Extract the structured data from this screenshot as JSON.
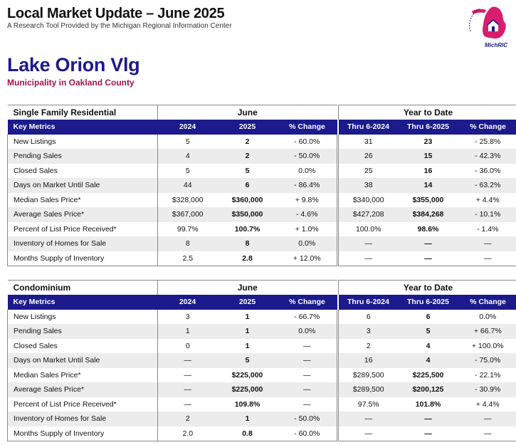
{
  "header": {
    "title": "Local Market Update – June 2025",
    "subtitle": "A Research Tool Provided by the Michigan Regional Information Center"
  },
  "logo": {
    "caption": "MichRIC",
    "color": "#d81f6e",
    "accent": "#1c1a8c"
  },
  "municipality": {
    "name": "Lake Orion Vlg",
    "subtitle": "Municipality in Oakland County"
  },
  "colors": {
    "header_bg": "#1c1a8c",
    "title": "#1c1a8c",
    "subtitle": "#a0134e",
    "stripe": "#ececec"
  },
  "columns": {
    "key_metrics": "Key Metrics",
    "group_month": "June",
    "group_ytd": "Year to Date",
    "m2024": "2024",
    "m2025": "2025",
    "pct": "% Change",
    "y2024": "Thru 6-2024",
    "y2025": "Thru 6-2025"
  },
  "sections": [
    {
      "title": "Single Family Residential",
      "rows": [
        [
          "New Listings",
          "5",
          "2",
          "- 60.0%",
          "31",
          "23",
          "- 25.8%"
        ],
        [
          "Pending Sales",
          "4",
          "2",
          "- 50.0%",
          "26",
          "15",
          "- 42.3%"
        ],
        [
          "Closed Sales",
          "5",
          "5",
          "0.0%",
          "25",
          "16",
          "- 36.0%"
        ],
        [
          "Days on Market Until Sale",
          "44",
          "6",
          "- 86.4%",
          "38",
          "14",
          "- 63.2%"
        ],
        [
          "Median Sales Price*",
          "$328,000",
          "$360,000",
          "+ 9.8%",
          "$340,000",
          "$355,000",
          "+ 4.4%"
        ],
        [
          "Average Sales Price*",
          "$367,000",
          "$350,000",
          "- 4.6%",
          "$427,208",
          "$384,268",
          "- 10.1%"
        ],
        [
          "Percent of List Price Received*",
          "99.7%",
          "100.7%",
          "+ 1.0%",
          "100.0%",
          "98.6%",
          "- 1.4%"
        ],
        [
          "Inventory of Homes for Sale",
          "8",
          "8",
          "0.0%",
          "—",
          "—",
          "—"
        ],
        [
          "Months Supply of Inventory",
          "2.5",
          "2.8",
          "+ 12.0%",
          "—",
          "—",
          "—"
        ]
      ]
    },
    {
      "title": "Condominium",
      "rows": [
        [
          "New Listings",
          "3",
          "1",
          "- 66.7%",
          "6",
          "6",
          "0.0%"
        ],
        [
          "Pending Sales",
          "1",
          "1",
          "0.0%",
          "3",
          "5",
          "+ 66.7%"
        ],
        [
          "Closed Sales",
          "0",
          "1",
          "—",
          "2",
          "4",
          "+ 100.0%"
        ],
        [
          "Days on Market Until Sale",
          "—",
          "5",
          "—",
          "16",
          "4",
          "- 75.0%"
        ],
        [
          "Median Sales Price*",
          "—",
          "$225,000",
          "—",
          "$289,500",
          "$225,500",
          "- 22.1%"
        ],
        [
          "Average Sales Price*",
          "—",
          "$225,000",
          "—",
          "$289,500",
          "$200,125",
          "- 30.9%"
        ],
        [
          "Percent of List Price Received*",
          "—",
          "109.8%",
          "—",
          "97.5%",
          "101.8%",
          "+ 4.4%"
        ],
        [
          "Inventory of Homes for Sale",
          "2",
          "1",
          "- 50.0%",
          "—",
          "—",
          "—"
        ],
        [
          "Months Supply of Inventory",
          "2.0",
          "0.8",
          "- 60.0%",
          "—",
          "—",
          "—"
        ]
      ]
    }
  ]
}
